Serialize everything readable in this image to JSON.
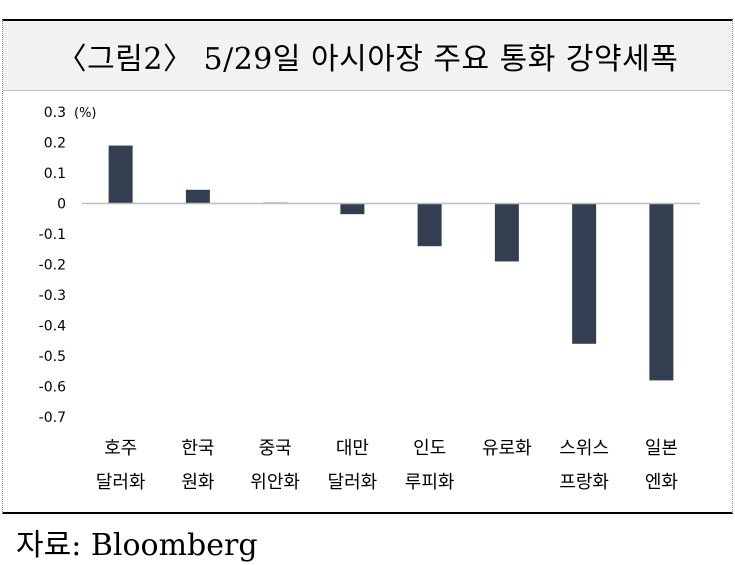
{
  "title": "〈그림2〉 5/29일 아시아장 주요 통화 강약세폭",
  "source": "자료: Bloomberg",
  "chart_data": {
    "type": "bar",
    "unit_label": "(%)",
    "categories": [
      [
        "호주",
        "달러화"
      ],
      [
        "한국",
        "원화"
      ],
      [
        "중국",
        "위안화"
      ],
      [
        "대만",
        "달러화"
      ],
      [
        "인도",
        "루피화"
      ],
      [
        "유로화",
        ""
      ],
      [
        "스위스",
        "프랑화"
      ],
      [
        "일본",
        "엔화"
      ]
    ],
    "values": [
      0.19,
      0.045,
      0.003,
      -0.035,
      -0.14,
      -0.19,
      -0.46,
      -0.58
    ],
    "ylim": [
      -0.7,
      0.3
    ],
    "yticks": [
      "0.3",
      "0.2",
      "0.1",
      "0",
      "-0.1",
      "-0.2",
      "-0.3",
      "-0.4",
      "-0.5",
      "-0.6",
      "-0.7"
    ],
    "bar_color": "#333f50",
    "axis_color": "#bfbfbf",
    "grid": false,
    "legend": "none"
  }
}
